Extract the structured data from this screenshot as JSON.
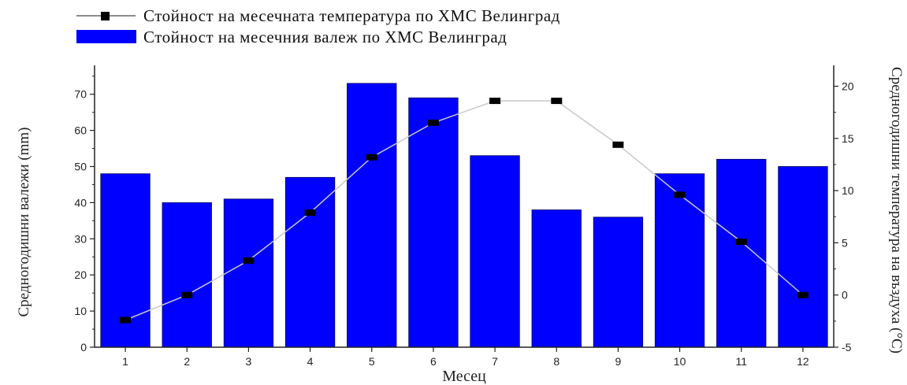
{
  "chart_data": {
    "type": "bar+line",
    "categories": [
      "1",
      "2",
      "3",
      "4",
      "5",
      "6",
      "7",
      "8",
      "9",
      "10",
      "11",
      "12"
    ],
    "series": [
      {
        "name": "Стойност на месечния валеж по ХМС Велинград",
        "kind": "bar",
        "axis": "left",
        "color": "#0000ff",
        "values": [
          48,
          40,
          41,
          47,
          73,
          69,
          53,
          38,
          36,
          48,
          52,
          50
        ]
      },
      {
        "name": "Стойност на месечната температура по ХМС Велинград",
        "kind": "line",
        "axis": "right",
        "color": "#000000",
        "line_color": "#c8c8c8",
        "values": [
          -2.4,
          0.0,
          3.3,
          7.9,
          13.2,
          16.5,
          18.6,
          18.6,
          14.4,
          9.6,
          5.1,
          0.0
        ]
      }
    ],
    "xlabel": "Месец",
    "ylabel_left": "Средногодишни валежи (mm)",
    "ylabel_right": "Средногодишни температура на въздуха (°C)",
    "ylim_left": [
      0,
      78
    ],
    "ylim_right": [
      -5,
      22
    ],
    "yticks_left": [
      0,
      10,
      20,
      30,
      40,
      50,
      60,
      70
    ],
    "yticks_right": [
      -5,
      0,
      5,
      10,
      15,
      20
    ],
    "legend_position": "top-left",
    "grid": false
  }
}
